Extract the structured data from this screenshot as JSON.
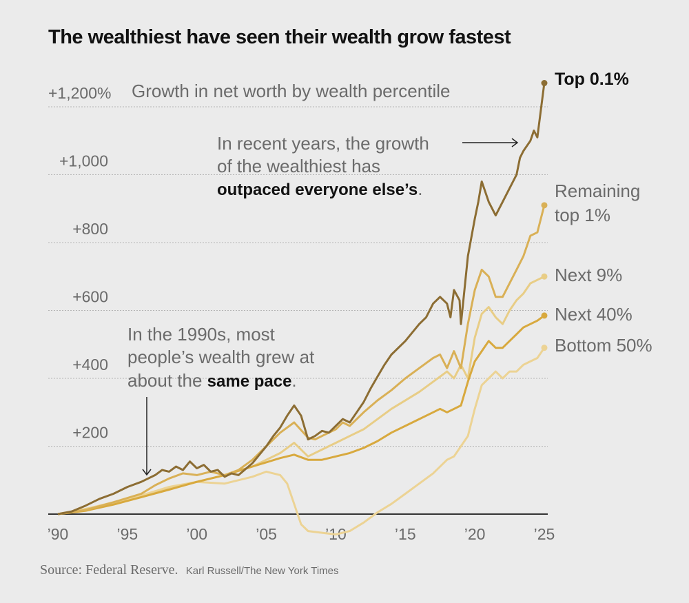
{
  "title": "The wealthiest have seen their wealth grow fastest",
  "source": "Source: Federal Reserve.",
  "credit": "Karl Russell/The New York Times",
  "chart_data": {
    "type": "line",
    "title": "The wealthiest have seen their wealth grow fastest",
    "ylabel": "Growth in net worth by wealth percentile",
    "xlabel": "",
    "xlim": [
      1989.9,
      2025.3
    ],
    "ylim": [
      -60,
      1260
    ],
    "yticks": [
      {
        "value": 200,
        "label": "+200"
      },
      {
        "value": 400,
        "label": "+400"
      },
      {
        "value": 600,
        "label": "+600"
      },
      {
        "value": 800,
        "label": "+800"
      },
      {
        "value": 1000,
        "label": "+1,000"
      },
      {
        "value": 1200,
        "label": "+1,200%"
      }
    ],
    "xticks": [
      {
        "value": 1990,
        "label": "’90"
      },
      {
        "value": 1995,
        "label": "’95"
      },
      {
        "value": 2000,
        "label": "’00"
      },
      {
        "value": 2005,
        "label": "’05"
      },
      {
        "value": 2010,
        "label": "’10"
      },
      {
        "value": 2015,
        "label": "’15"
      },
      {
        "value": 2020,
        "label": "’20"
      },
      {
        "value": 2025,
        "label": "’25"
      }
    ],
    "grid": true,
    "legend": "direct-labels-right",
    "series": [
      {
        "name": "Top 0.1%",
        "color": "#8c6d33",
        "x": [
          1990,
          1991,
          1992,
          1993,
          1994,
          1995,
          1996,
          1997,
          1997.5,
          1998,
          1998.5,
          1999,
          1999.5,
          2000,
          2000.5,
          2001,
          2001.5,
          2002,
          2002.5,
          2003,
          2004,
          2004.5,
          2005,
          2005.5,
          2006,
          2006.5,
          2007,
          2007.5,
          2008,
          2008.5,
          2009,
          2009.5,
          2010,
          2010.5,
          2011,
          2011.5,
          2012,
          2012.5,
          2013,
          2013.5,
          2014,
          2015,
          2016,
          2016.5,
          2017,
          2017.5,
          2018,
          2018.25,
          2018.5,
          2018.9,
          2019,
          2019.5,
          2020,
          2020.25,
          2020.5,
          2021,
          2021.5,
          2022,
          2022.5,
          2023,
          2023.25,
          2023.5,
          2024,
          2024.25,
          2024.5,
          2025
        ],
        "values": [
          0,
          8,
          25,
          45,
          60,
          80,
          95,
          115,
          130,
          125,
          140,
          130,
          155,
          135,
          145,
          125,
          130,
          110,
          120,
          115,
          150,
          175,
          200,
          230,
          255,
          290,
          320,
          290,
          220,
          230,
          245,
          240,
          260,
          280,
          270,
          300,
          330,
          370,
          405,
          440,
          470,
          510,
          560,
          580,
          620,
          640,
          620,
          580,
          660,
          630,
          560,
          760,
          870,
          920,
          980,
          920,
          880,
          920,
          960,
          1000,
          1050,
          1070,
          1100,
          1130,
          1110,
          1270
        ]
      },
      {
        "name": "Remaining top 1%",
        "color": "#d9b056",
        "x": [
          1990,
          1992,
          1994,
          1996,
          1997,
          1998,
          1999,
          2000,
          2001,
          2002,
          2003,
          2004,
          2005,
          2006,
          2007,
          2008,
          2008.5,
          2009,
          2010,
          2010.5,
          2011,
          2012,
          2013,
          2014,
          2015,
          2016,
          2017,
          2017.5,
          2018,
          2018.5,
          2019,
          2019.5,
          2020,
          2020.5,
          2021,
          2021.5,
          2022,
          2022.5,
          2023,
          2023.5,
          2024,
          2024.5,
          2025
        ],
        "values": [
          0,
          12,
          35,
          60,
          85,
          105,
          120,
          115,
          125,
          115,
          130,
          160,
          200,
          240,
          270,
          225,
          220,
          230,
          250,
          270,
          260,
          300,
          335,
          365,
          400,
          430,
          460,
          470,
          430,
          480,
          430,
          560,
          660,
          720,
          700,
          640,
          640,
          680,
          720,
          760,
          820,
          830,
          910
        ]
      },
      {
        "name": "Next 9%",
        "color": "#e8cd86",
        "x": [
          1990,
          1992,
          1994,
          1996,
          1998,
          2000,
          2002,
          2004,
          2006,
          2007,
          2008,
          2009,
          2010,
          2011,
          2012,
          2014,
          2016,
          2017,
          2018,
          2018.5,
          2019,
          2019.5,
          2020,
          2020.5,
          2021,
          2021.5,
          2022,
          2022.5,
          2023,
          2023.5,
          2024,
          2024.5,
          2025
        ],
        "values": [
          0,
          15,
          30,
          50,
          75,
          95,
          115,
          140,
          180,
          210,
          170,
          190,
          210,
          230,
          250,
          310,
          360,
          390,
          420,
          400,
          440,
          400,
          520,
          590,
          610,
          580,
          560,
          600,
          630,
          650,
          680,
          690,
          700
        ]
      },
      {
        "name": "Next 40%",
        "color": "#d8a93e",
        "x": [
          1990,
          1992,
          1994,
          1996,
          1998,
          2000,
          2002,
          2004,
          2006,
          2007,
          2008,
          2009,
          2010,
          2011,
          2012,
          2013,
          2014,
          2015,
          2016,
          2017,
          2017.5,
          2018,
          2019,
          2019.5,
          2020,
          2020.5,
          2021,
          2021.5,
          2022,
          2022.5,
          2023,
          2023.5,
          2024,
          2024.5,
          2025
        ],
        "values": [
          0,
          10,
          28,
          50,
          72,
          95,
          115,
          140,
          165,
          175,
          160,
          160,
          170,
          180,
          195,
          215,
          240,
          260,
          280,
          300,
          310,
          300,
          320,
          390,
          450,
          480,
          510,
          490,
          490,
          510,
          530,
          550,
          560,
          570,
          585
        ]
      },
      {
        "name": "Bottom 50%",
        "color": "#ecd394",
        "x": [
          1990,
          1992,
          1994,
          1996,
          1998,
          2000,
          2002,
          2004,
          2005,
          2006,
          2006.5,
          2007,
          2007.5,
          2008,
          2009,
          2010,
          2011,
          2012,
          2013,
          2014,
          2015,
          2016,
          2017,
          2018,
          2018.5,
          2019,
          2019.5,
          2020,
          2020.5,
          2021,
          2021.5,
          2022,
          2022.5,
          2023,
          2023.5,
          2024,
          2024.5,
          2025
        ],
        "values": [
          0,
          15,
          35,
          55,
          80,
          95,
          90,
          110,
          125,
          115,
          90,
          30,
          -30,
          -50,
          -55,
          -60,
          -50,
          -25,
          5,
          30,
          60,
          90,
          120,
          160,
          170,
          200,
          230,
          310,
          380,
          400,
          420,
          400,
          420,
          420,
          440,
          450,
          460,
          490
        ]
      }
    ],
    "annotations": [
      {
        "text_lines": [
          "In recent years, the growth",
          "of the wealthiest has"
        ],
        "bold": "outpaced everyone else’s",
        "suffix": ".",
        "arrow": "right"
      },
      {
        "text_lines": [
          "In the 1990s, most",
          "people’s wealth grew at"
        ],
        "prefix": "about the ",
        "bold": "same pace",
        "suffix": ".",
        "arrow": "down"
      }
    ]
  },
  "labels": {
    "ylabel_title": "Growth in net worth by wealth percentile",
    "top01": "Top 0.1%",
    "rem1_line1": "Remaining",
    "rem1_line2": "top 1%",
    "next9": "Next 9%",
    "next40": "Next 40%",
    "bottom50": "Bottom 50%"
  },
  "ann1": {
    "line1": "In recent years, the growth",
    "line2": "of the wealthiest has",
    "bold": "outpaced everyone else’s",
    "suffix": "."
  },
  "ann2": {
    "line1": "In the 1990s, most",
    "line2": "people’s wealth grew at",
    "prefix": "about the ",
    "bold": "same pace",
    "suffix": "."
  }
}
